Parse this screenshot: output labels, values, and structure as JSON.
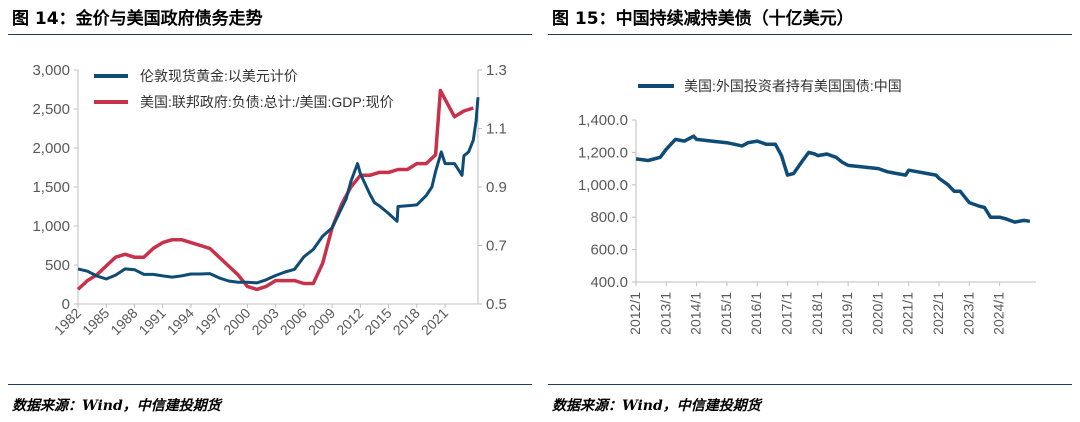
{
  "figures": [
    {
      "title": "图 14：金价与美国政府债务走势",
      "source": "数据来源：Wind，中信建投期货"
    },
    {
      "title": "图 15：中国持续减持美债（十亿美元）",
      "source": "数据来源：Wind，中信建投期货"
    }
  ],
  "colors": {
    "navy": "#0f4c75",
    "red": "#c8314a",
    "rule": "#1f3d5c",
    "axis": "#bfbfbf"
  },
  "chart_data": [
    {
      "type": "line",
      "title": "",
      "legend_position": "top-left",
      "grid": false,
      "xlim": [
        1982,
        2024.5
      ],
      "x_ticks": [
        "1982",
        "1985",
        "1988",
        "1991",
        "1994",
        "1997",
        "2000",
        "2003",
        "2006",
        "2009",
        "2012",
        "2015",
        "2018",
        "2021"
      ],
      "y_left": {
        "lim": [
          0,
          3000
        ],
        "ticks": [
          "0",
          "500",
          "1,000",
          "1,500",
          "2,000",
          "2,500",
          "3,000"
        ]
      },
      "y_right": {
        "lim": [
          0.5,
          1.3
        ],
        "ticks": [
          "0.5",
          "0.7",
          "0.9",
          "1.1",
          "1.3"
        ]
      },
      "series": [
        {
          "name": "伦敦现货黄金:以美元计价",
          "axis": "left",
          "color": "#0f4c75",
          "x": [
            1982,
            1983,
            1984,
            1985,
            1986,
            1987,
            1988,
            1989,
            1990,
            1991,
            1992,
            1993,
            1994,
            1995,
            1996,
            1997,
            1998,
            1999,
            2000,
            2001,
            2002,
            2003,
            2004,
            2005,
            2006,
            2007,
            2008,
            2009,
            2010,
            2010.5,
            2011,
            2011.7,
            2012,
            2013,
            2013.5,
            2014,
            2015,
            2015.9,
            2016,
            2017,
            2018,
            2019,
            2019.6,
            2020,
            2020.6,
            2021,
            2022,
            2022.8,
            2023,
            2023.5,
            2024,
            2024.3,
            2024.5
          ],
          "y": [
            450,
            420,
            360,
            320,
            370,
            450,
            440,
            380,
            380,
            360,
            345,
            360,
            385,
            385,
            390,
            335,
            295,
            280,
            280,
            270,
            310,
            365,
            410,
            445,
            605,
            700,
            870,
            975,
            1225,
            1350,
            1570,
            1800,
            1670,
            1410,
            1300,
            1260,
            1160,
            1060,
            1250,
            1260,
            1270,
            1390,
            1500,
            1700,
            1950,
            1800,
            1800,
            1650,
            1900,
            1950,
            2100,
            2350,
            2650
          ]
        },
        {
          "name": "美国:联邦政府:负债:总计:/美国:GDP:现价",
          "axis": "right",
          "color": "#c8314a",
          "x": [
            1982,
            1983,
            1984,
            1985,
            1986,
            1987,
            1988,
            1989,
            1990,
            1991,
            1992,
            1993,
            1994,
            1995,
            1996,
            1997,
            1998,
            1999,
            2000,
            2001,
            2002,
            2003,
            2004,
            2005,
            2006,
            2007,
            2008,
            2009,
            2010,
            2011,
            2012,
            2013,
            2014,
            2015,
            2016,
            2017,
            2018,
            2019,
            2020,
            2020.5,
            2021,
            2022,
            2023,
            2024
          ],
          "y": [
            0.55,
            0.58,
            0.6,
            0.63,
            0.66,
            0.67,
            0.66,
            0.66,
            0.69,
            0.71,
            0.72,
            0.72,
            0.71,
            0.7,
            0.69,
            0.66,
            0.63,
            0.6,
            0.56,
            0.55,
            0.56,
            0.58,
            0.58,
            0.58,
            0.57,
            0.57,
            0.64,
            0.76,
            0.84,
            0.9,
            0.94,
            0.94,
            0.95,
            0.95,
            0.96,
            0.96,
            0.98,
            0.98,
            1.01,
            1.23,
            1.2,
            1.14,
            1.16,
            1.17
          ]
        }
      ]
    },
    {
      "type": "line",
      "title": "",
      "legend_position": "top-left",
      "grid": false,
      "xlim": [
        2012.0,
        2025.2
      ],
      "x_ticks": [
        "2012/1",
        "2013/1",
        "2014/1",
        "2015/1",
        "2016/1",
        "2017/1",
        "2018/1",
        "2019/1",
        "2020/1",
        "2021/1",
        "2022/1",
        "2023/1",
        "2024/1"
      ],
      "ylim": [
        400,
        1400
      ],
      "y_ticks": [
        "400.0",
        "600.0",
        "800.0",
        "1,000.0",
        "1,200.0",
        "1,400.0"
      ],
      "series": [
        {
          "name": "美国:外国投资者持有美国国债:中国",
          "color": "#0f4c75",
          "x": [
            2012.0,
            2012.4,
            2012.8,
            2013.0,
            2013.3,
            2013.6,
            2013.9,
            2014.0,
            2014.5,
            2015.0,
            2015.5,
            2015.7,
            2016.0,
            2016.3,
            2016.6,
            2016.8,
            2017.0,
            2017.2,
            2017.5,
            2017.7,
            2017.9,
            2018.0,
            2018.3,
            2018.6,
            2018.8,
            2019.0,
            2019.5,
            2020.0,
            2020.3,
            2020.6,
            2020.9,
            2021.0,
            2021.3,
            2021.6,
            2021.9,
            2022.0,
            2022.3,
            2022.5,
            2022.7,
            2023.0,
            2023.3,
            2023.5,
            2023.7,
            2024.0,
            2024.2,
            2024.5,
            2024.8,
            2025.0
          ],
          "y": [
            1160,
            1150,
            1170,
            1220,
            1280,
            1270,
            1300,
            1280,
            1270,
            1260,
            1240,
            1260,
            1270,
            1250,
            1250,
            1180,
            1060,
            1070,
            1150,
            1200,
            1190,
            1180,
            1190,
            1170,
            1140,
            1120,
            1110,
            1100,
            1080,
            1070,
            1060,
            1090,
            1080,
            1070,
            1060,
            1040,
            1000,
            960,
            960,
            890,
            870,
            860,
            800,
            800,
            790,
            770,
            780,
            775
          ]
        }
      ]
    }
  ]
}
